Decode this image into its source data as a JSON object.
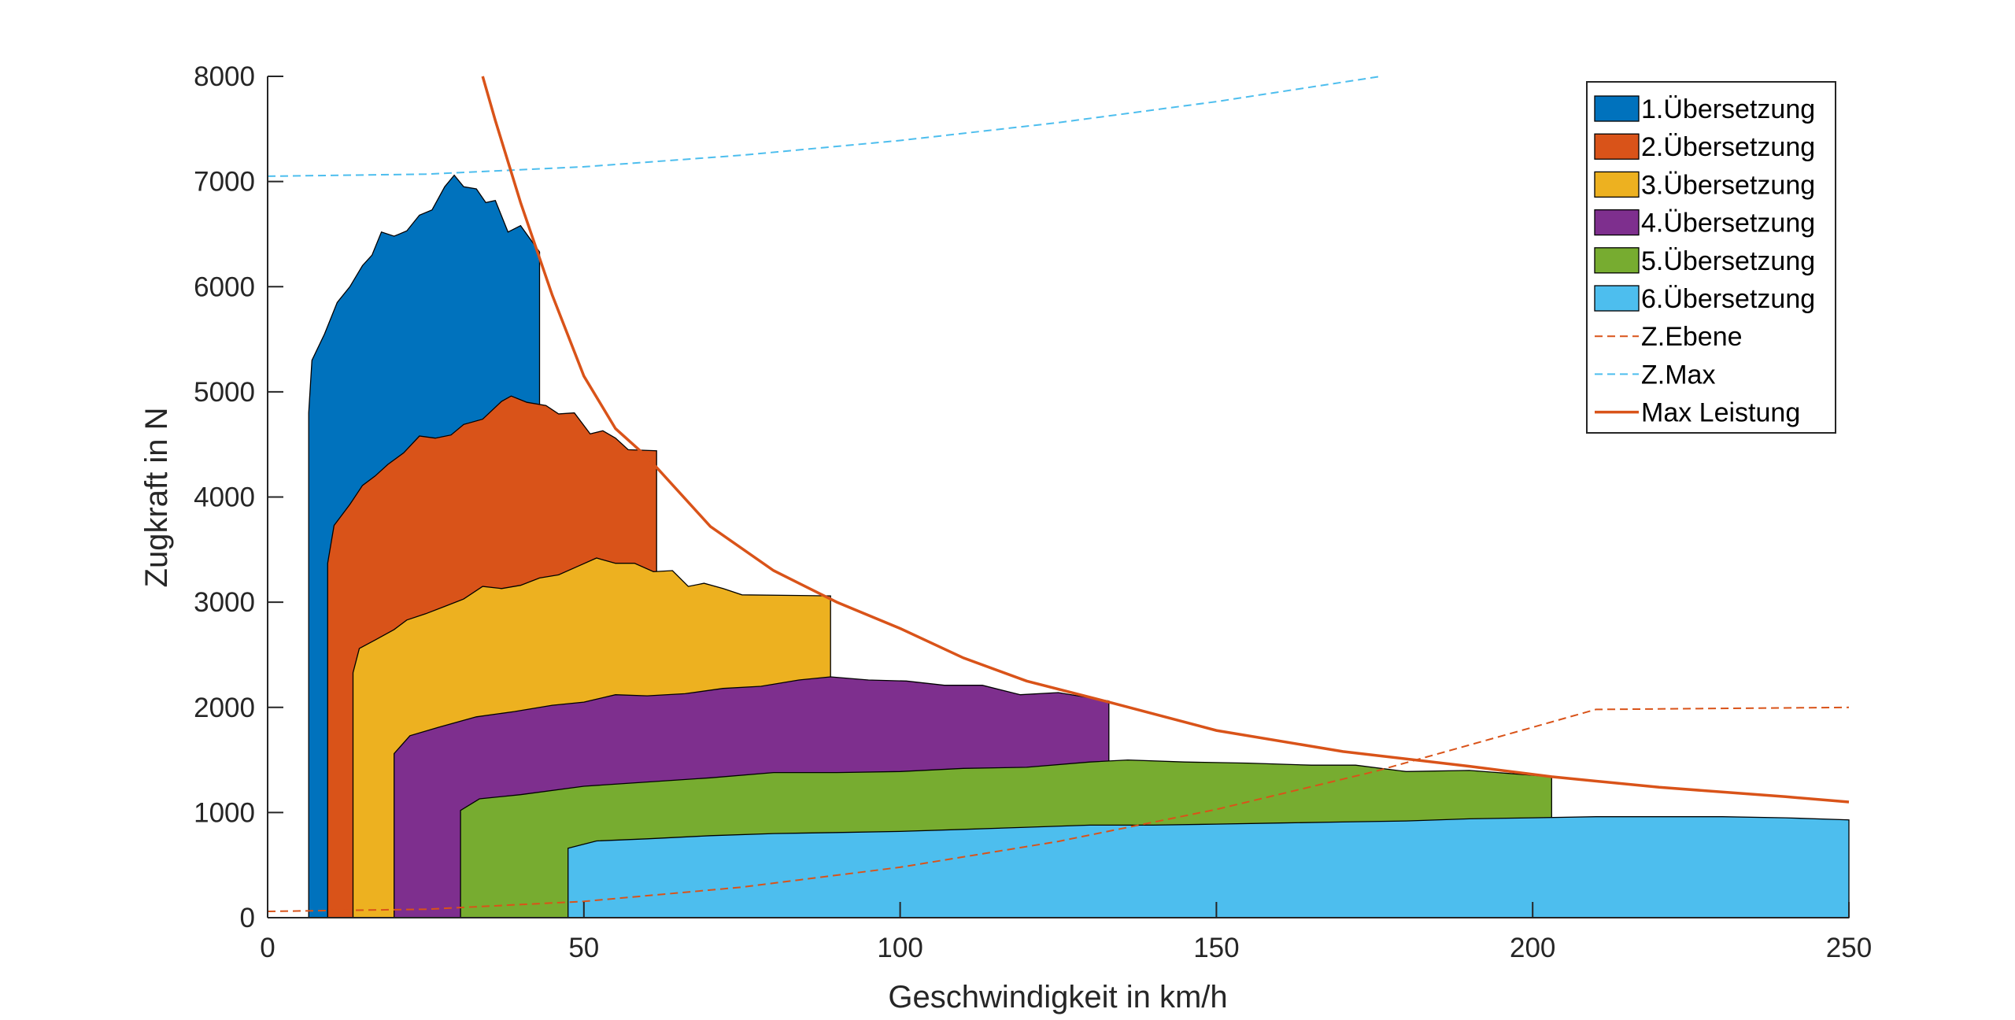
{
  "chart_data": {
    "type": "area",
    "xlabel": "Geschwindigkeit in km/h",
    "ylabel": "Zugkraft in N",
    "xlim": [
      0,
      250
    ],
    "ylim": [
      0,
      8000
    ],
    "xticks": [
      0,
      50,
      100,
      150,
      200,
      250
    ],
    "yticks": [
      0,
      1000,
      2000,
      3000,
      4000,
      5000,
      6000,
      7000,
      8000
    ],
    "grid": false,
    "legend_position": "top-right",
    "series": [
      {
        "name": "1.Übersetzung",
        "kind": "area",
        "color": "#0072BD",
        "points": [
          [
            6.5,
            0
          ],
          [
            6.5,
            4800
          ],
          [
            7.0,
            5300
          ],
          [
            9,
            5550
          ],
          [
            11,
            5850
          ],
          [
            13,
            6000
          ],
          [
            15,
            6200
          ],
          [
            16.5,
            6300
          ],
          [
            18,
            6520
          ],
          [
            20,
            6480
          ],
          [
            22,
            6530
          ],
          [
            24,
            6680
          ],
          [
            26,
            6730
          ],
          [
            28,
            6950
          ],
          [
            29.5,
            7060
          ],
          [
            31,
            6950
          ],
          [
            33,
            6930
          ],
          [
            34.5,
            6800
          ],
          [
            36,
            6820
          ],
          [
            38,
            6520
          ],
          [
            40,
            6580
          ],
          [
            43,
            6330
          ],
          [
            43,
            0
          ]
        ]
      },
      {
        "name": "2.Übersetzung",
        "kind": "area",
        "color": "#D95319",
        "points": [
          [
            9.5,
            0
          ],
          [
            9.5,
            3370
          ],
          [
            10.5,
            3730
          ],
          [
            13,
            3930
          ],
          [
            15,
            4110
          ],
          [
            17,
            4200
          ],
          [
            19,
            4310
          ],
          [
            21.5,
            4420
          ],
          [
            24,
            4580
          ],
          [
            26.5,
            4560
          ],
          [
            29,
            4590
          ],
          [
            31,
            4690
          ],
          [
            34,
            4740
          ],
          [
            37,
            4910
          ],
          [
            38.5,
            4960
          ],
          [
            41,
            4900
          ],
          [
            44,
            4870
          ],
          [
            46,
            4790
          ],
          [
            48.5,
            4800
          ],
          [
            51,
            4600
          ],
          [
            53,
            4630
          ],
          [
            55,
            4560
          ],
          [
            57,
            4450
          ],
          [
            61.5,
            4440
          ],
          [
            61.5,
            0
          ]
        ]
      },
      {
        "name": "3.Übersetzung",
        "kind": "area",
        "color": "#EDB120",
        "points": [
          [
            13.5,
            0
          ],
          [
            13.5,
            2330
          ],
          [
            14.5,
            2560
          ],
          [
            17,
            2640
          ],
          [
            20,
            2740
          ],
          [
            22,
            2830
          ],
          [
            25,
            2890
          ],
          [
            28,
            2960
          ],
          [
            31,
            3030
          ],
          [
            34,
            3150
          ],
          [
            37,
            3130
          ],
          [
            40,
            3160
          ],
          [
            43,
            3230
          ],
          [
            46,
            3260
          ],
          [
            49,
            3340
          ],
          [
            52,
            3420
          ],
          [
            55,
            3370
          ],
          [
            58,
            3370
          ],
          [
            61,
            3290
          ],
          [
            64,
            3300
          ],
          [
            66.5,
            3150
          ],
          [
            69,
            3180
          ],
          [
            72,
            3130
          ],
          [
            75,
            3070
          ],
          [
            89,
            3060
          ],
          [
            89,
            0
          ]
        ]
      },
      {
        "name": "4.Übersetzung",
        "kind": "area",
        "color": "#7E2F8E",
        "points": [
          [
            20,
            0
          ],
          [
            20,
            1560
          ],
          [
            22.5,
            1730
          ],
          [
            27,
            1810
          ],
          [
            33,
            1910
          ],
          [
            39,
            1960
          ],
          [
            45,
            2020
          ],
          [
            50,
            2050
          ],
          [
            55,
            2120
          ],
          [
            60,
            2110
          ],
          [
            66,
            2130
          ],
          [
            72,
            2180
          ],
          [
            78,
            2200
          ],
          [
            84,
            2260
          ],
          [
            89,
            2290
          ],
          [
            95,
            2260
          ],
          [
            101,
            2250
          ],
          [
            107,
            2210
          ],
          [
            113,
            2210
          ],
          [
            119,
            2120
          ],
          [
            125,
            2140
          ],
          [
            133,
            2060
          ],
          [
            133,
            0
          ]
        ]
      },
      {
        "name": "5.Übersetzung",
        "kind": "area",
        "color": "#77AC30",
        "points": [
          [
            30.5,
            0
          ],
          [
            30.5,
            1020
          ],
          [
            33.5,
            1130
          ],
          [
            40,
            1170
          ],
          [
            50,
            1250
          ],
          [
            60,
            1290
          ],
          [
            70,
            1330
          ],
          [
            80,
            1380
          ],
          [
            90,
            1380
          ],
          [
            100,
            1390
          ],
          [
            110,
            1420
          ],
          [
            120,
            1430
          ],
          [
            130,
            1480
          ],
          [
            136,
            1500
          ],
          [
            145,
            1480
          ],
          [
            155,
            1470
          ],
          [
            165,
            1450
          ],
          [
            172,
            1450
          ],
          [
            180,
            1390
          ],
          [
            190,
            1400
          ],
          [
            203,
            1340
          ],
          [
            203,
            0
          ]
        ]
      },
      {
        "name": "6.Übersetzung",
        "kind": "area",
        "color": "#4DBEEE",
        "points": [
          [
            47.5,
            0
          ],
          [
            47.5,
            660
          ],
          [
            52,
            730
          ],
          [
            60,
            750
          ],
          [
            70,
            780
          ],
          [
            80,
            800
          ],
          [
            90,
            810
          ],
          [
            100,
            820
          ],
          [
            110,
            840
          ],
          [
            120,
            860
          ],
          [
            130,
            880
          ],
          [
            140,
            880
          ],
          [
            150,
            890
          ],
          [
            160,
            900
          ],
          [
            170,
            910
          ],
          [
            180,
            920
          ],
          [
            190,
            940
          ],
          [
            200,
            950
          ],
          [
            210,
            960
          ],
          [
            220,
            960
          ],
          [
            230,
            960
          ],
          [
            240,
            950
          ],
          [
            250,
            930
          ],
          [
            250,
            0
          ]
        ]
      },
      {
        "name": "Z.Ebene",
        "kind": "dashed-line",
        "color": "#D95319",
        "points": [
          [
            0,
            60
          ],
          [
            25,
            80
          ],
          [
            50,
            155
          ],
          [
            75,
            290
          ],
          [
            100,
            480
          ],
          [
            125,
            725
          ],
          [
            150,
            1030
          ],
          [
            175,
            1390
          ],
          [
            200,
            1810
          ],
          [
            210,
            1980
          ],
          [
            250,
            2000
          ]
        ]
      },
      {
        "name": "Z.Max",
        "kind": "dashed-line",
        "color": "#4DBEEE",
        "points": [
          [
            0,
            7050
          ],
          [
            25,
            7070
          ],
          [
            50,
            7140
          ],
          [
            75,
            7250
          ],
          [
            100,
            7390
          ],
          [
            125,
            7560
          ],
          [
            150,
            7760
          ],
          [
            176,
            8000
          ]
        ]
      },
      {
        "name": "Max Leistung",
        "kind": "line",
        "color": "#D95319",
        "points": [
          [
            34,
            8000
          ],
          [
            36,
            7580
          ],
          [
            40,
            6800
          ],
          [
            45,
            5920
          ],
          [
            50,
            5150
          ],
          [
            55,
            4650
          ],
          [
            60,
            4380
          ],
          [
            70,
            3720
          ],
          [
            80,
            3300
          ],
          [
            90,
            3000
          ],
          [
            100,
            2750
          ],
          [
            110,
            2470
          ],
          [
            120,
            2250
          ],
          [
            133,
            2050
          ],
          [
            150,
            1780
          ],
          [
            170,
            1580
          ],
          [
            190,
            1440
          ],
          [
            203,
            1340
          ],
          [
            220,
            1240
          ],
          [
            240,
            1150
          ],
          [
            250,
            1100
          ]
        ]
      }
    ]
  }
}
